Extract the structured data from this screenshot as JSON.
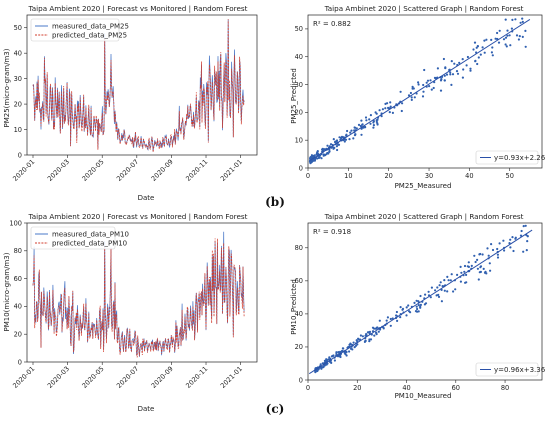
{
  "figure": {
    "label_b": "(b)",
    "label_c": "(c)"
  },
  "chart_data": [
    {
      "id": "ts_pm25",
      "type": "line",
      "title": "Taipa Ambient 2020 | Forecast vs Monitored | Random Forest",
      "xlabel": "Date",
      "ylabel": "PM25(micro-gram/m3)",
      "x_ticks": [
        "2020-01",
        "2020-03",
        "2020-05",
        "2020-07",
        "2020-09",
        "2020-11",
        "2021-01"
      ],
      "ylim": [
        0,
        55
      ],
      "y_ticks": [
        0,
        10,
        20,
        30,
        40,
        50
      ],
      "series": [
        {
          "name": "measured_data_PM25",
          "color": "#4a78c8"
        },
        {
          "name": "predicted_data_PM25",
          "color": "#d23c2c"
        }
      ],
      "profile": {
        "months": [
          0,
          1,
          2,
          3,
          3.6,
          4,
          4.5,
          5,
          6,
          7,
          8,
          8.5,
          9,
          9.5,
          10,
          10.5,
          11,
          11.5,
          12.2
        ],
        "levels": [
          22,
          19,
          17,
          14,
          13,
          12,
          25,
          7,
          5,
          4,
          5,
          9,
          13,
          18,
          22,
          29,
          28,
          26,
          22
        ]
      }
    },
    {
      "id": "sc_pm25",
      "type": "scatter",
      "title": "Taipa Ambinet 2020 | Scattered Graph | Random Forest",
      "xlabel": "PM25_Measured",
      "ylabel": "PM25_Predicted",
      "r2_label": "R² = 0.882",
      "fit_label": "y=0.93x+2.26",
      "fit": {
        "slope": 0.93,
        "intercept": 2.26
      },
      "xlim": [
        0,
        58
      ],
      "ylim": [
        0,
        55
      ],
      "x_ticks": [
        0,
        10,
        20,
        30,
        40,
        50
      ],
      "y_ticks": [
        0,
        10,
        20,
        30,
        40,
        50
      ],
      "color": "#3060b0",
      "x_range": [
        0.5,
        54
      ]
    },
    {
      "id": "ts_pm10",
      "type": "line",
      "title": "Taipa Ambient 2020 | Forecast vs Monitored | Random Forest",
      "xlabel": "Date",
      "ylabel": "PM10(micro-gram/m3)",
      "x_ticks": [
        "2020-01",
        "2020-03",
        "2020-05",
        "2020-07",
        "2020-09",
        "2020-11",
        "2021-01"
      ],
      "ylim": [
        0,
        100
      ],
      "y_ticks": [
        0,
        20,
        40,
        60,
        80,
        100
      ],
      "series": [
        {
          "name": "measured_data_PM10",
          "color": "#4a78c8"
        },
        {
          "name": "predicted_data_PM10",
          "color": "#d23c2c"
        }
      ],
      "profile": {
        "months": [
          0,
          1,
          2,
          3,
          3.6,
          4,
          4.5,
          5,
          6,
          7,
          8,
          8.5,
          9,
          9.5,
          10,
          10.5,
          11,
          11.5,
          12.2
        ],
        "levels": [
          42,
          36,
          33,
          26,
          22,
          24,
          45,
          17,
          13,
          10,
          12,
          20,
          28,
          38,
          52,
          62,
          60,
          55,
          48
        ]
      }
    },
    {
      "id": "sc_pm10",
      "type": "scatter",
      "title": "Taipa Ambinet 2020 | Scattered Graph | Random Forest",
      "xlabel": "PM10_Measured",
      "ylabel": "PM10_Predicted",
      "r2_label": "R² = 0.918",
      "fit_label": "y=0.96x+3.36",
      "fit": {
        "slope": 0.96,
        "intercept": 3.36
      },
      "xlim": [
        0,
        95
      ],
      "ylim": [
        0,
        95
      ],
      "x_ticks": [
        0,
        20,
        40,
        60,
        80
      ],
      "y_ticks": [
        0,
        20,
        40,
        60,
        80
      ],
      "color": "#3060b0",
      "x_range": [
        3,
        90
      ]
    }
  ]
}
